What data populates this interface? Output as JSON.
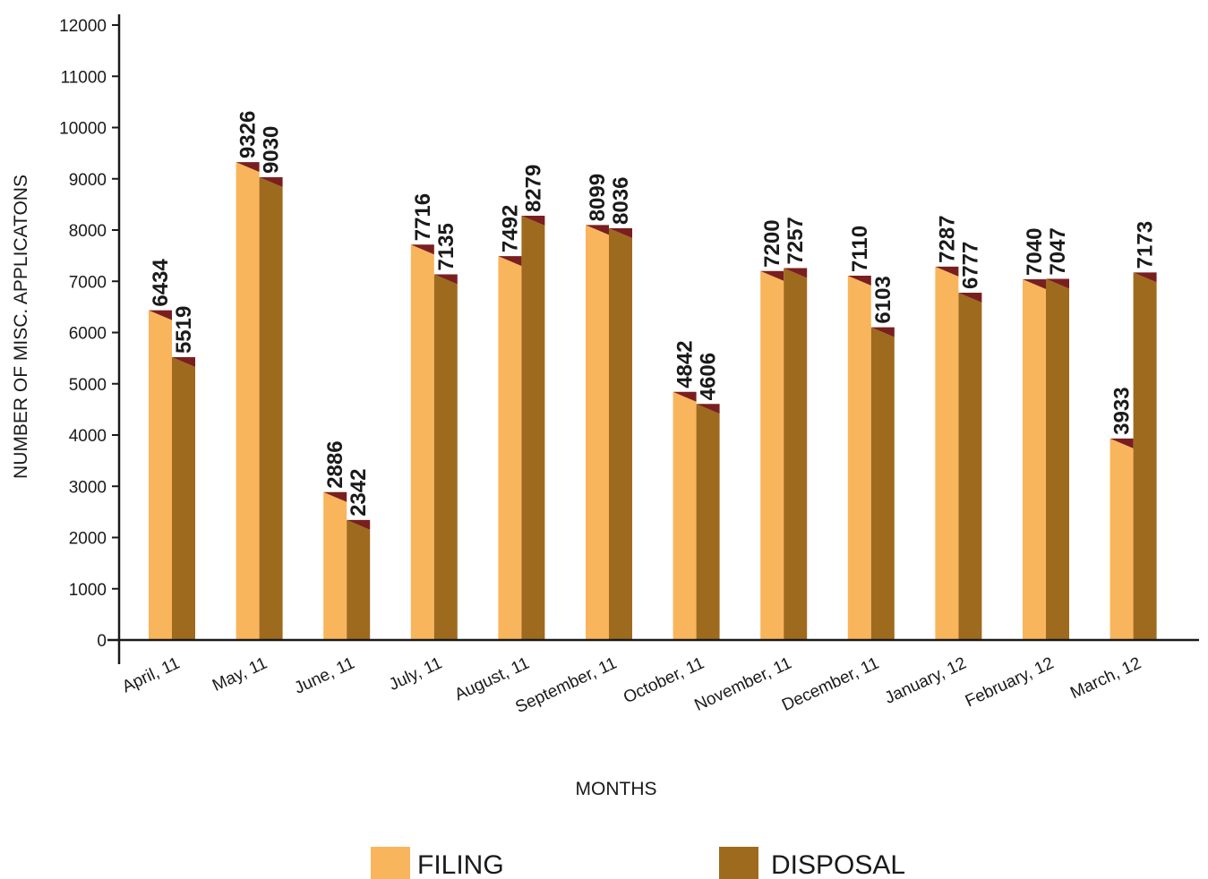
{
  "chart_data": {
    "type": "bar",
    "title": "",
    "xlabel": "MONTHS",
    "ylabel": "NUMBER OF MISC. APPLICATONS",
    "ylim": [
      0,
      12000
    ],
    "yticks": [
      0,
      1000,
      2000,
      3000,
      4000,
      5000,
      6000,
      7000,
      8000,
      9000,
      10000,
      11000,
      12000
    ],
    "categories": [
      "April, 11",
      "May, 11",
      "June, 11",
      "July, 11",
      "August, 11",
      "September, 11",
      "October, 11",
      "November, 11",
      "December, 11",
      "January, 12",
      "February, 12",
      "March, 12"
    ],
    "series": [
      {
        "name": "FILING",
        "color": "#F9B55C",
        "values": [
          6434,
          9326,
          2886,
          7716,
          7492,
          8099,
          4842,
          7200,
          7110,
          7287,
          7040,
          3933
        ]
      },
      {
        "name": "DISPOSAL",
        "color": "#9E6A1E",
        "values": [
          5519,
          9030,
          2342,
          7135,
          8279,
          8036,
          4606,
          7257,
          6103,
          6777,
          7047,
          7173
        ]
      }
    ],
    "cap_color": "#7A1F1F",
    "grid": false,
    "legend_position": "bottom"
  }
}
